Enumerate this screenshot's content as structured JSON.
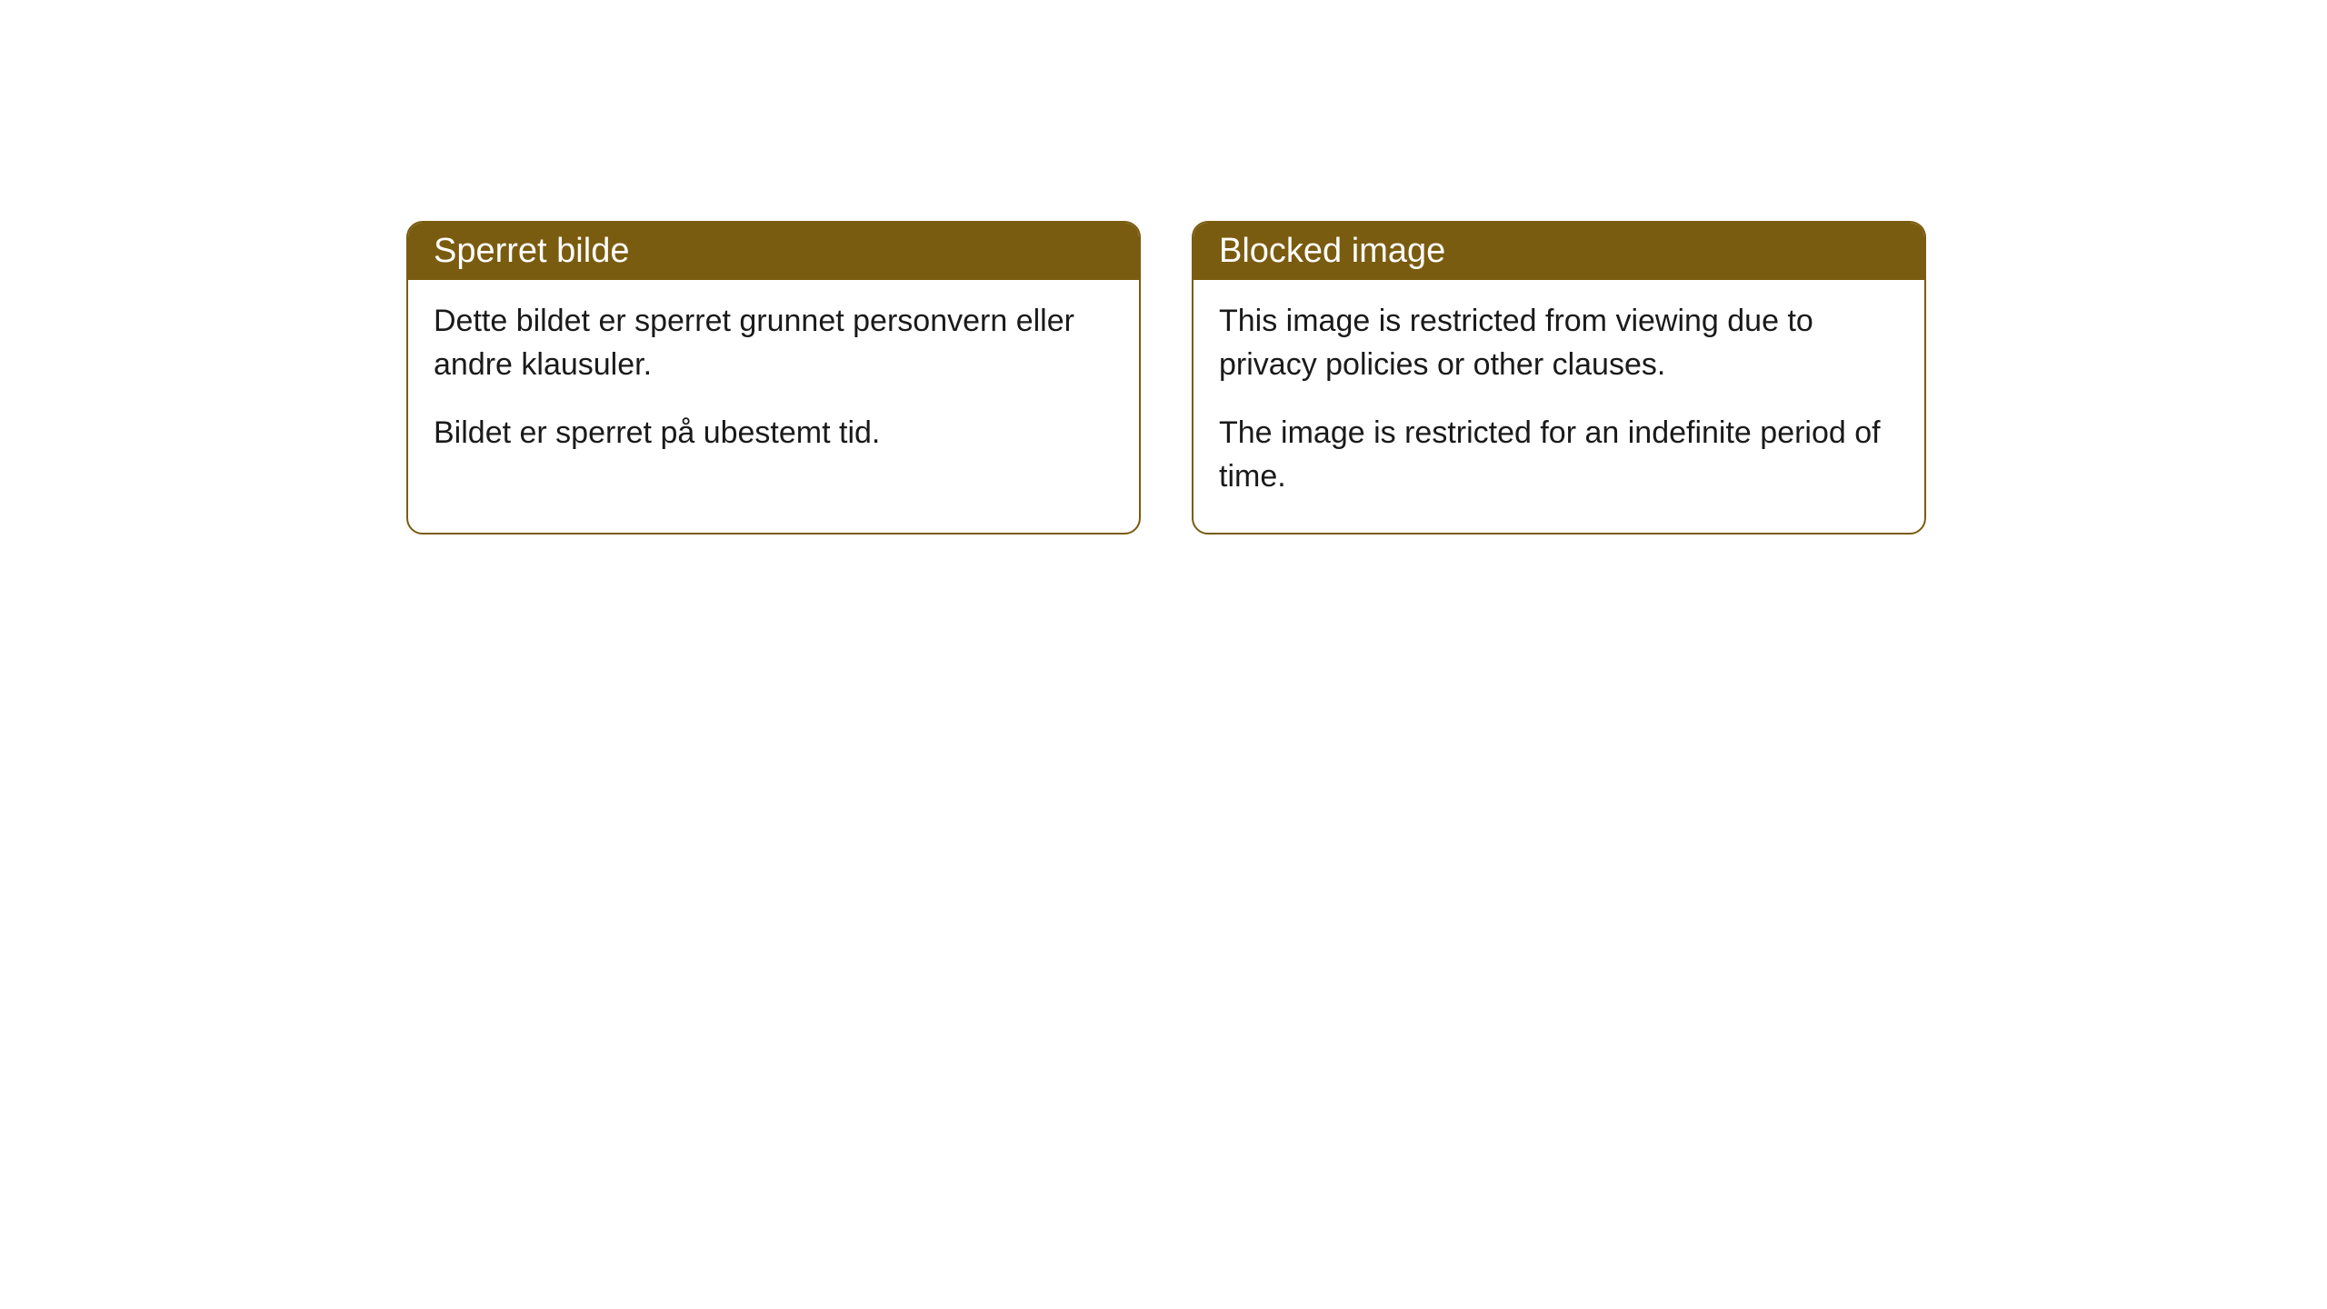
{
  "cards": [
    {
      "title": "Sperret bilde",
      "paragraph1": "Dette bildet er sperret grunnet personvern eller andre klausuler.",
      "paragraph2": "Bildet er sperret på ubestemt tid."
    },
    {
      "title": "Blocked image",
      "paragraph1": "This image is restricted from viewing due to privacy policies or other clauses.",
      "paragraph2": "The image is restricted for an indefinite period of time."
    }
  ],
  "styling": {
    "header_background": "#7a5c10",
    "header_text_color": "#ffffff",
    "border_color": "#7a5c10",
    "body_background": "#ffffff",
    "body_text_color": "#1a1a1a",
    "border_radius": 18,
    "title_fontsize": 38,
    "body_fontsize": 34
  }
}
